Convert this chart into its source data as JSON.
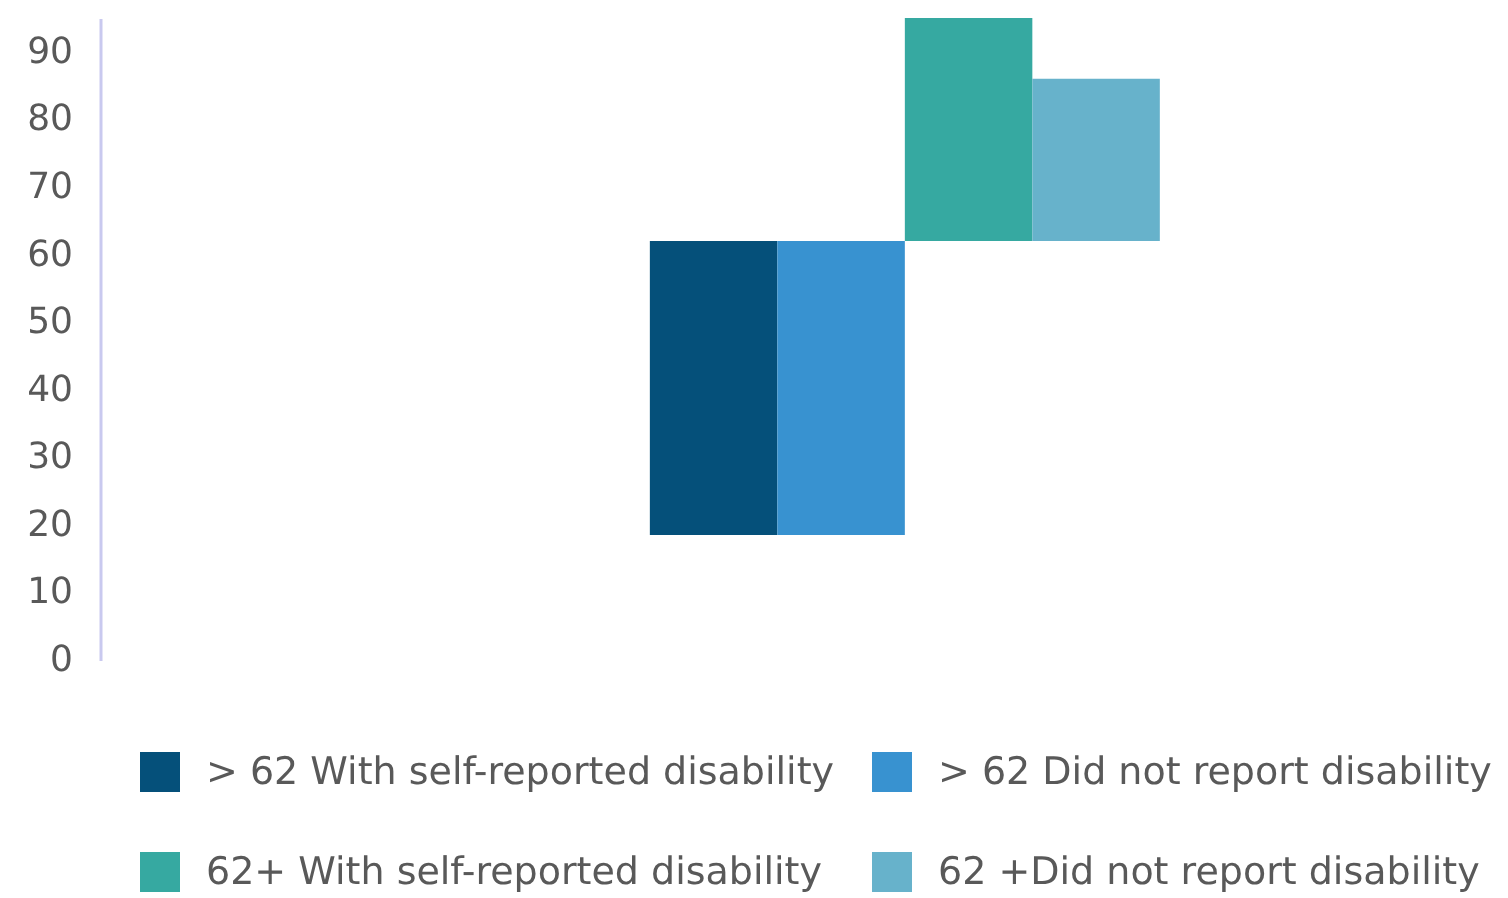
{
  "chart_data": {
    "type": "bar",
    "categories": [
      null
    ],
    "series": [
      {
        "name": "> 62 With self-reported disability",
        "color": "#05507a",
        "values": [
          43.5
        ],
        "base": [
          18.5
        ]
      },
      {
        "name": "> 62 Did not report disability",
        "color": "#3892d0",
        "values": [
          43.5
        ],
        "base": [
          18.5
        ]
      },
      {
        "name": "62+ With self-reported disability",
        "color": "#36a9a1",
        "values": [
          33
        ],
        "base": [
          62
        ]
      },
      {
        "name": "62 +Did not report disability",
        "color": "#67b2cb",
        "values": [
          24
        ],
        "base": [
          62
        ]
      }
    ],
    "ylim": [
      0,
      95
    ],
    "yticks": [
      0,
      10,
      20,
      30,
      40,
      50,
      60,
      70,
      80,
      90
    ],
    "legend": "bottom"
  }
}
